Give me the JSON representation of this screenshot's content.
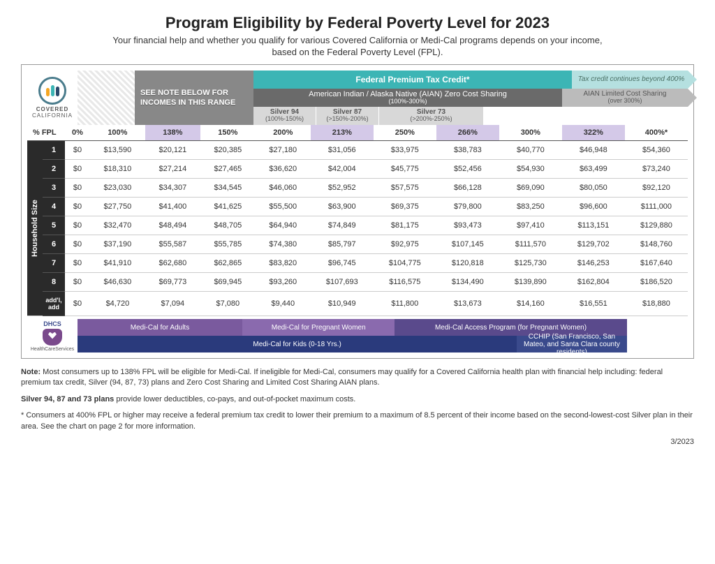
{
  "title": "Program Eligibility by Federal Poverty Level for 2023",
  "subtitle1": "Your financial help and whether you qualify for various Covered California or Medi-Cal programs depends on your income,",
  "subtitle2": "based on the Federal Poverty Level (FPL).",
  "logo": {
    "top": "COVERED",
    "bottom": "CALIFORNIA"
  },
  "noteBox": "SEE NOTE BELOW FOR INCOMES IN THIS RANGE",
  "bands": {
    "fptc": "Federal Premium Tax Credit*",
    "fptcCont": "Tax credit continues beyond 400%",
    "aian": "American Indian / Alaska Native (AIAN) Zero Cost Sharing",
    "aianSub": "(100%-300%)",
    "aianLimited": "AIAN Limited Cost Sharing",
    "aianLimitedSub": "(over 300%)",
    "silver94": "Silver 94",
    "silver94Sub": "(100%-150%)",
    "silver87": "Silver 87",
    "silver87Sub": "(>150%-200%)",
    "silver73": "Silver 73",
    "silver73Sub": "(>200%-250%)"
  },
  "colors": {
    "teal": "#3cb5b5",
    "tealLight": "#b5e0e0",
    "darkGray": "#6a6a6a",
    "midGray": "#bbbbbb",
    "lightGray": "#d8d8d8",
    "noteGray": "#888888",
    "shadedCol": "#d4c9e8",
    "purple1": "#7a5a9e",
    "purple2": "#8a6aae",
    "purpleDark": "#5a4a8c",
    "navy": "#2a3a7c",
    "navyMid": "#3a4a8c",
    "personOrange": "#f5a623",
    "personTeal": "#3cb5b5",
    "personNavy": "#2a4a6c"
  },
  "headers": [
    "% FPL",
    "0%",
    "100%",
    "138%",
    "150%",
    "200%",
    "213%",
    "250%",
    "266%",
    "300%",
    "322%",
    "400%*"
  ],
  "shadedCols": [
    3,
    6,
    8,
    10
  ],
  "rowLabels": [
    "1",
    "2",
    "3",
    "4",
    "5",
    "6",
    "7",
    "8",
    "add'l, add"
  ],
  "hhLabel": "Household Size",
  "rows": [
    [
      "$0",
      "$13,590",
      "$20,121",
      "$20,385",
      "$27,180",
      "$31,056",
      "$33,975",
      "$38,783",
      "$40,770",
      "$46,948",
      "$54,360"
    ],
    [
      "$0",
      "$18,310",
      "$27,214",
      "$27,465",
      "$36,620",
      "$42,004",
      "$45,775",
      "$52,456",
      "$54,930",
      "$63,499",
      "$73,240"
    ],
    [
      "$0",
      "$23,030",
      "$34,307",
      "$34,545",
      "$46,060",
      "$52,952",
      "$57,575",
      "$66,128",
      "$69,090",
      "$80,050",
      "$92,120"
    ],
    [
      "$0",
      "$27,750",
      "$41,400",
      "$41,625",
      "$55,500",
      "$63,900",
      "$69,375",
      "$79,800",
      "$83,250",
      "$96,600",
      "$111,000"
    ],
    [
      "$0",
      "$32,470",
      "$48,494",
      "$48,705",
      "$64,940",
      "$74,849",
      "$81,175",
      "$93,473",
      "$97,410",
      "$113,151",
      "$129,880"
    ],
    [
      "$0",
      "$37,190",
      "$55,587",
      "$55,785",
      "$74,380",
      "$85,797",
      "$92,975",
      "$107,145",
      "$111,570",
      "$129,702",
      "$148,760"
    ],
    [
      "$0",
      "$41,910",
      "$62,680",
      "$62,865",
      "$83,820",
      "$96,745",
      "$104,775",
      "$120,818",
      "$125,730",
      "$146,253",
      "$167,640"
    ],
    [
      "$0",
      "$46,630",
      "$69,773",
      "$69,945",
      "$93,260",
      "$107,693",
      "$116,575",
      "$134,490",
      "$139,890",
      "$162,804",
      "$186,520"
    ],
    [
      "$0",
      "$4,720",
      "$7,094",
      "$7,080",
      "$9,440",
      "$10,949",
      "$11,800",
      "$13,673",
      "$14,160",
      "$16,551",
      "$18,880"
    ]
  ],
  "programs": {
    "dhcs": "DHCS",
    "dhcsSub": "HealthCareServices",
    "row1": [
      {
        "label": "Medi-Cal for Adults",
        "width": "27%",
        "bg": "#7a5a9e"
      },
      {
        "label": "Medi-Cal for Pregnant Women",
        "width": "25%",
        "bg": "#8a6aae"
      },
      {
        "label": "Medi-Cal Access Program\n(for Pregnant Women)",
        "width": "38%",
        "bg": "#5a4a8c"
      },
      {
        "label": "",
        "width": "10%",
        "bg": "#ffffff"
      }
    ],
    "row2": [
      {
        "label": "Medi-Cal for Kids\n(0-18 Yrs.)",
        "width": "72%",
        "bg": "#2a3a7c"
      },
      {
        "label": "CCHIP (San Francisco, San Mateo, and Santa Clara county residents)",
        "width": "18%",
        "bg": "#3a4a8c"
      },
      {
        "label": "",
        "width": "10%",
        "bg": "#ffffff"
      }
    ]
  },
  "notes": {
    "p1a": "Note:",
    "p1b": " Most consumers up to 138% FPL will be eligible for Medi-Cal. If ineligible for Medi-Cal, consumers may qualify for a Covered California health plan with financial help including: federal premium tax credit, Silver (94, 87, 73) plans and Zero Cost Sharing and Limited Cost Sharing AIAN plans.",
    "p2a": "Silver 94, 87 and 73 plans",
    "p2b": " provide lower deductibles, co-pays, and out-of-pocket maximum costs.",
    "p3": "* Consumers at 400% FPL or higher may receive a federal premium tax credit to lower their premium to a maximum of 8.5 percent of their income based on the second-lowest-cost Silver plan in their area. See the chart on page 2 for more information."
  },
  "date": "3/2023"
}
